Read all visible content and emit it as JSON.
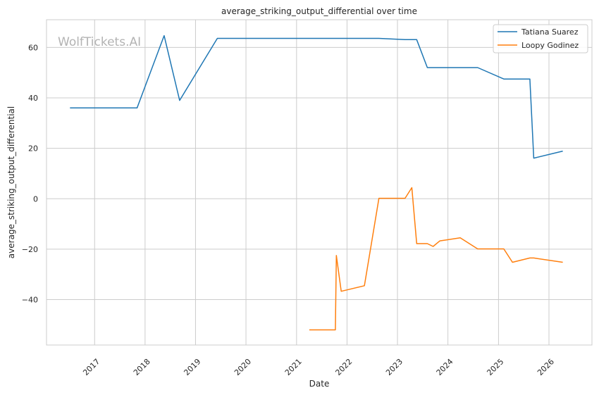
{
  "chart_data": {
    "type": "line",
    "title": "average_striking_output_differential over time",
    "xlabel": "Date",
    "ylabel": "average_striking_output_differential",
    "watermark": "WolfTickets.AI",
    "x_type": "date",
    "xlim": [
      "2016-01-19",
      "2026-11-08"
    ],
    "ylim": [
      -58,
      71
    ],
    "x_ticks": [
      "2017",
      "2018",
      "2019",
      "2020",
      "2021",
      "2022",
      "2023",
      "2024",
      "2025",
      "2026"
    ],
    "y_ticks": [
      60,
      40,
      20,
      0,
      -20,
      -40
    ],
    "y_tick_labels": [
      "60",
      "40",
      "20",
      "0",
      "−20",
      "−40"
    ],
    "grid": true,
    "legend_position": "top-right",
    "series": [
      {
        "name": "Tatiana Suarez",
        "color": "#1f77b4",
        "points": [
          [
            "2016-07-07",
            36.0
          ],
          [
            "2017-11-04",
            36.0
          ],
          [
            "2018-05-19",
            64.7
          ],
          [
            "2018-09-08",
            39.0
          ],
          [
            "2019-06-08",
            63.6
          ],
          [
            "2022-08-20",
            63.6
          ],
          [
            "2023-02-25",
            63.1
          ],
          [
            "2023-05-20",
            63.1
          ],
          [
            "2023-08-05",
            52.0
          ],
          [
            "2024-08-03",
            52.0
          ],
          [
            "2025-02-08",
            47.5
          ],
          [
            "2025-08-16",
            47.5
          ],
          [
            "2025-09-13",
            16.1
          ],
          [
            "2026-04-11",
            18.9
          ]
        ]
      },
      {
        "name": "Loopy Godinez",
        "color": "#ff7f0e",
        "points": [
          [
            "2021-04-03",
            -52.0
          ],
          [
            "2021-10-09",
            -52.0
          ],
          [
            "2021-10-16",
            -22.5
          ],
          [
            "2021-11-20",
            -36.7
          ],
          [
            "2022-05-07",
            -34.5
          ],
          [
            "2022-08-20",
            0.2
          ],
          [
            "2023-02-25",
            0.2
          ],
          [
            "2023-04-15",
            4.4
          ],
          [
            "2023-05-20",
            -17.8
          ],
          [
            "2023-08-05",
            -17.8
          ],
          [
            "2023-09-16",
            -18.9
          ],
          [
            "2023-11-04",
            -16.7
          ],
          [
            "2024-03-30",
            -15.5
          ],
          [
            "2024-08-03",
            -19.9
          ],
          [
            "2025-02-08",
            -19.9
          ],
          [
            "2025-04-12",
            -25.2
          ],
          [
            "2025-08-16",
            -23.5
          ],
          [
            "2025-09-13",
            -23.5
          ],
          [
            "2026-04-11",
            -25.2
          ]
        ]
      }
    ]
  }
}
